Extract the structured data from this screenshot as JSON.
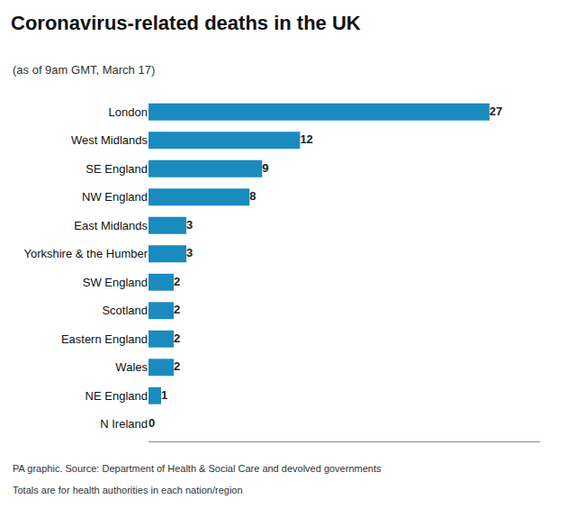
{
  "chart_data": {
    "type": "bar",
    "orientation": "horizontal",
    "title": "Coronavirus-related deaths in the UK",
    "subtitle": "(as of 9am GMT, March 17)",
    "annotations": [
      "PA graphic. Source: Department of Health & Social Care and devolved governments",
      "Totals are for health authorities in each nation/region"
    ],
    "categories": [
      "London",
      "West Midlands",
      "SE England",
      "NW England",
      "East Midlands",
      "Yorkshire & the Humber",
      "SW England",
      "Scotland",
      "Eastern England",
      "Wales",
      "NE England",
      "N Ireland"
    ],
    "values": [
      27,
      12,
      9,
      8,
      3,
      3,
      2,
      2,
      2,
      2,
      1,
      0
    ],
    "color": "#1a8bbf",
    "xlim": [
      0,
      31
    ],
    "data_labels": true,
    "tick_labels": "y",
    "grid": false
  }
}
